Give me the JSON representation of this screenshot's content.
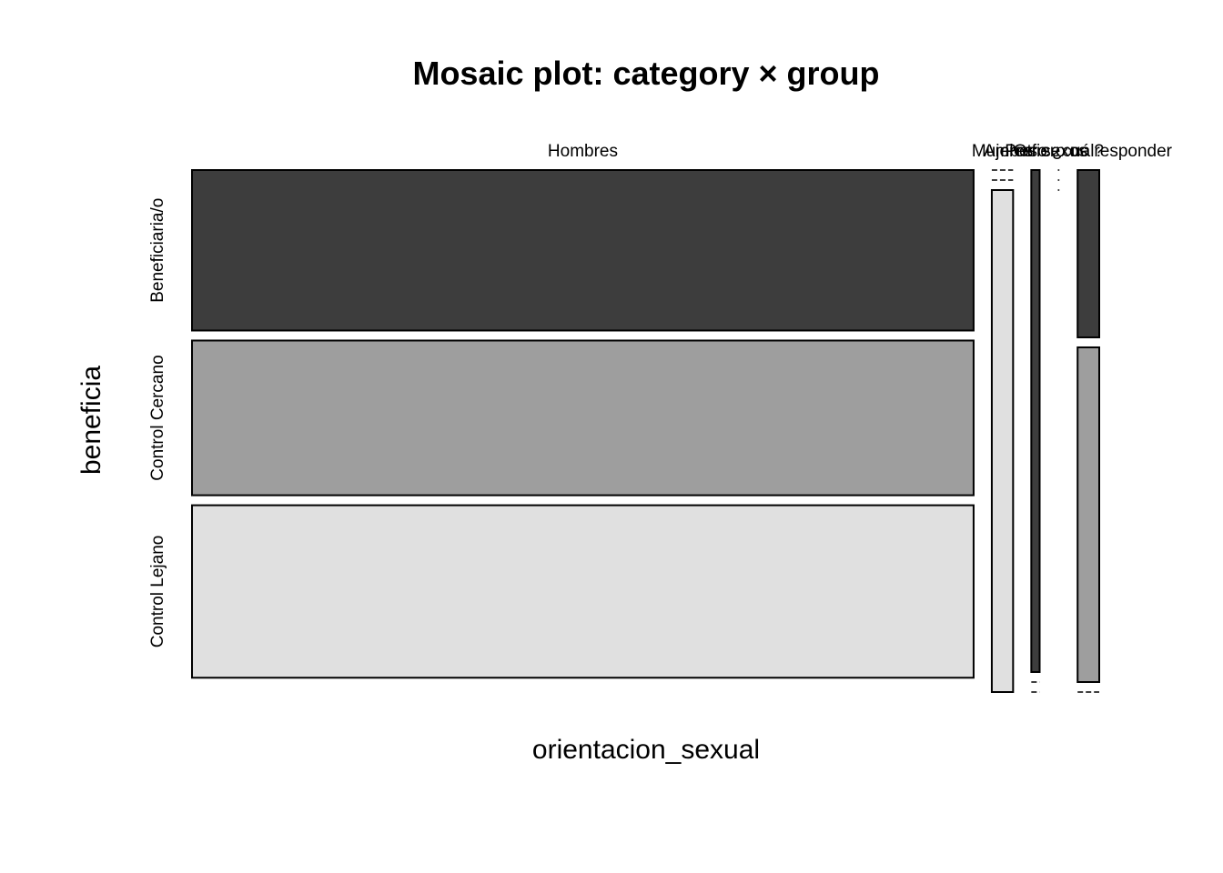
{
  "chart_data": {
    "type": "mosaic",
    "title": "Mosaic plot: category × group",
    "xlabel": "orientacion_sexual",
    "ylabel": "beneficia",
    "columns": [
      "Hombres",
      "Mujeres",
      "Ambos sexos",
      "Otro ¿cuál?",
      "Prefiero no responder"
    ],
    "rows": [
      "Beneficiaria/o",
      "Control Cercano",
      "Control Lejano"
    ],
    "colors": {
      "Beneficiaria/o": "#3d3d3d",
      "Control Cercano": "#9e9e9e",
      "Control Lejano": "#e0e0e0",
      "border": "#000000"
    },
    "column_proportions": [
      0.8993,
      0.0245,
      0.0096,
      0.0018,
      0.0249
    ],
    "conditional_proportions": [
      [
        0.3197,
        0.3082,
        0.3436
      ],
      [
        0.0,
        0.0,
        1.0
      ],
      [
        1.0,
        0.0,
        0.0
      ],
      [
        0.0,
        0.0,
        0.0
      ],
      [
        0.3333,
        0.6667,
        0.0
      ]
    ]
  }
}
